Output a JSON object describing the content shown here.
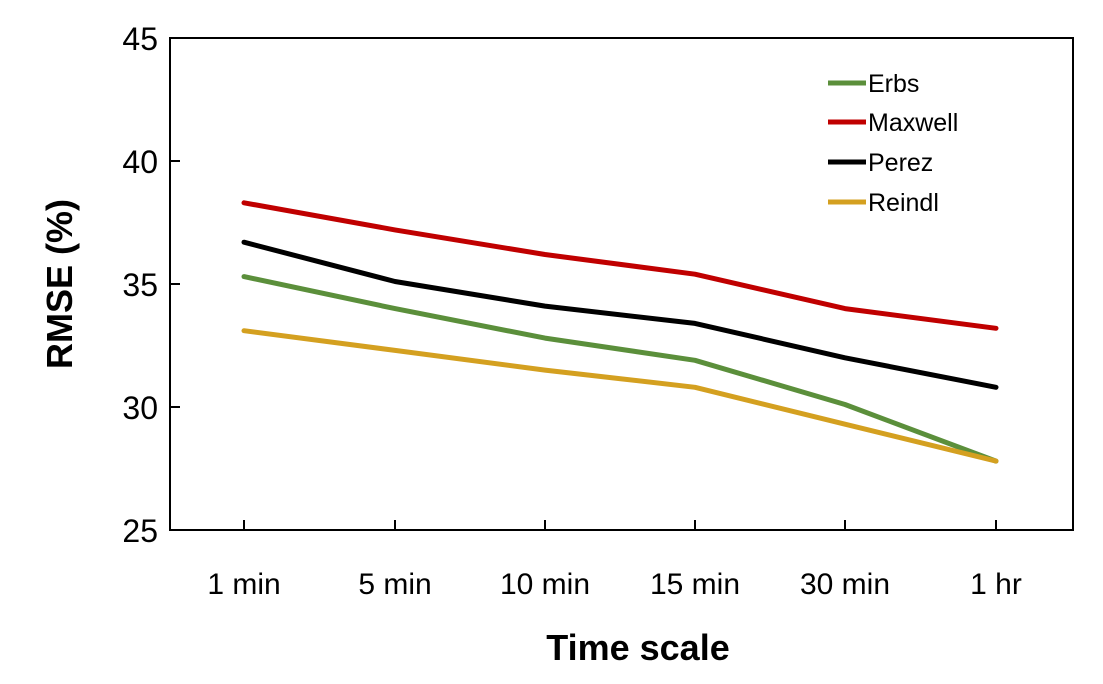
{
  "chart_data": {
    "type": "line",
    "title": "",
    "xlabel": "Time scale",
    "ylabel": "RMSE (%)",
    "categories": [
      "1 min",
      "5 min",
      "10 min",
      "15 min",
      "30 min",
      "1 hr"
    ],
    "ylim": [
      25,
      45
    ],
    "yticks": [
      "25",
      "30",
      "35",
      "40",
      "45"
    ],
    "grid": false,
    "legend_position": "top-right",
    "series": [
      {
        "name": "Erbs",
        "color": "#5b8f3b",
        "values": [
          35.3,
          34.0,
          32.8,
          31.9,
          30.1,
          27.8
        ]
      },
      {
        "name": "Maxwell",
        "color": "#c00000",
        "values": [
          38.3,
          37.2,
          36.2,
          35.4,
          34.0,
          33.2
        ]
      },
      {
        "name": "Perez",
        "color": "#000000",
        "values": [
          36.7,
          35.1,
          34.1,
          33.4,
          32.0,
          30.8
        ]
      },
      {
        "name": "Reindl",
        "color": "#d4a020",
        "values": [
          33.1,
          32.3,
          31.5,
          30.8,
          29.3,
          27.8
        ]
      }
    ]
  }
}
